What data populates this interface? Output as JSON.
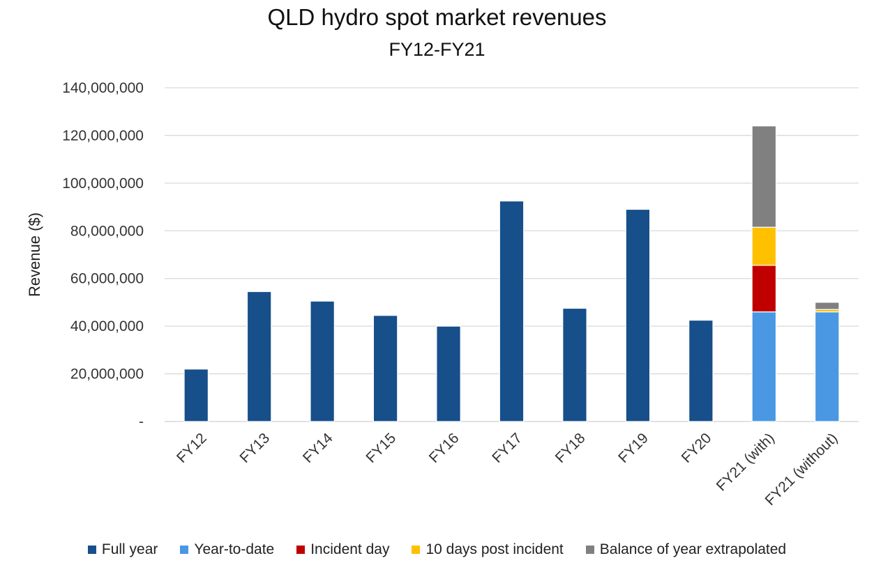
{
  "chart_data": {
    "type": "bar",
    "stacked": true,
    "title": "QLD hydro spot market revenues",
    "subtitle": "FY12-FY21",
    "ylabel": "Revenue ($)",
    "xlabel": "",
    "ylim": [
      0,
      140000000
    ],
    "yticks": [
      0,
      20000000,
      40000000,
      60000000,
      80000000,
      100000000,
      120000000,
      140000000
    ],
    "ytick_labels": [
      "-",
      "20,000,000",
      "40,000,000",
      "60,000,000",
      "80,000,000",
      "100,000,000",
      "120,000,000",
      "140,000,000"
    ],
    "grid": true,
    "legend_position": "bottom",
    "categories": [
      "FY12",
      "FY13",
      "FY14",
      "FY15",
      "FY16",
      "FY17",
      "FY18",
      "FY19",
      "FY20",
      "FY21 (with)",
      "FY21 (without)"
    ],
    "series": [
      {
        "name": "Full year",
        "color": "#174f8a",
        "values": [
          22000000,
          54500000,
          50500000,
          44500000,
          40000000,
          92500000,
          47500000,
          89000000,
          42500000,
          0,
          0
        ]
      },
      {
        "name": "Year-to-date",
        "color": "#4a97e3",
        "values": [
          0,
          0,
          0,
          0,
          0,
          0,
          0,
          0,
          0,
          46000000,
          46000000
        ]
      },
      {
        "name": "Incident day",
        "color": "#c00000",
        "values": [
          0,
          0,
          0,
          0,
          0,
          0,
          0,
          0,
          0,
          19500000,
          0
        ]
      },
      {
        "name": "10 days post incident",
        "color": "#ffc000",
        "values": [
          0,
          0,
          0,
          0,
          0,
          0,
          0,
          0,
          0,
          16000000,
          1000000
        ]
      },
      {
        "name": "Balance of year extrapolated",
        "color": "#808080",
        "values": [
          0,
          0,
          0,
          0,
          0,
          0,
          0,
          0,
          0,
          42500000,
          3000000
        ]
      }
    ]
  }
}
